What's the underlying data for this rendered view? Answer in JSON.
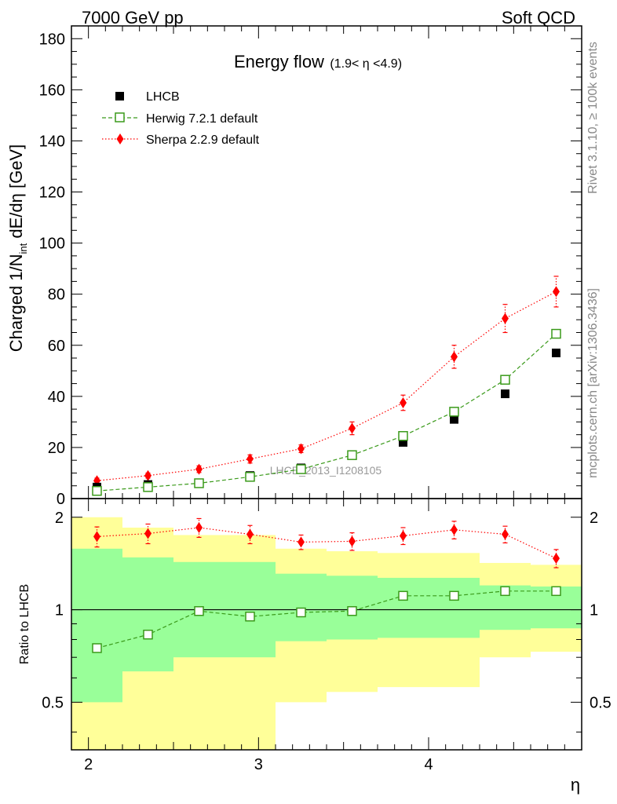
{
  "header": {
    "left": "7000 GeV pp",
    "right": "Soft QCD"
  },
  "side_text": {
    "rivet": "Rivet 3.1.10, ≥ 100k events",
    "mcplots": "mcplots.cern.ch [arXiv:1306.3436]"
  },
  "watermark": "LHCB_2013_I1208105",
  "title": {
    "main": "Energy flow",
    "range": "(1.9< η <4.9)"
  },
  "ylabel_main": {
    "prefix": "Charged 1/N",
    "sub": "int",
    "suffix": " dE/dη [GeV]"
  },
  "ylabel_ratio": "Ratio to LHCB",
  "xlabel": "η",
  "legend": {
    "data": "LHCB",
    "herwig": "Herwig 7.2.1 default",
    "sherpa": "Sherpa 2.2.9 default"
  },
  "colors": {
    "herwig": "#3a9a1a",
    "sherpa": "#ff0000",
    "data": "#000000",
    "band_inner": "#99ff99",
    "band_outer": "#ffff99"
  },
  "chart_data": [
    {
      "type": "scatter",
      "panel": "main",
      "xlim": [
        1.9,
        4.9
      ],
      "ylim": [
        0,
        185
      ],
      "yticks": [
        0,
        20,
        40,
        60,
        80,
        100,
        120,
        140,
        160,
        180
      ],
      "x": [
        2.05,
        2.35,
        2.65,
        2.95,
        3.25,
        3.55,
        3.85,
        4.15,
        4.45,
        4.75
      ],
      "series": [
        {
          "name": "LHCB",
          "values": [
            4.5,
            5.5,
            6.0,
            9.0,
            12.0,
            17.0,
            22.0,
            31.0,
            41.0,
            57.0
          ]
        },
        {
          "name": "Herwig 7.2.1 default",
          "values": [
            3.0,
            4.5,
            6.0,
            8.5,
            11.5,
            17.0,
            24.5,
            34.0,
            46.5,
            64.5
          ],
          "errors": [
            0.2,
            0.2,
            0.2,
            0.3,
            0.3,
            0.4,
            0.5,
            0.7,
            0.9,
            1.2
          ]
        },
        {
          "name": "Sherpa 2.2.9 default",
          "values": [
            7.0,
            9.0,
            11.5,
            15.5,
            19.5,
            27.5,
            37.5,
            55.5,
            70.5,
            81.0
          ],
          "errors": [
            1.0,
            1.0,
            1.3,
            1.6,
            1.5,
            2.5,
            3.0,
            4.5,
            5.5,
            6.0
          ]
        }
      ]
    },
    {
      "type": "scatter",
      "panel": "ratio",
      "xlim": [
        1.9,
        4.9
      ],
      "ylim": [
        0.35,
        2.3
      ],
      "yticks": [
        0.5,
        1,
        2
      ],
      "xticks": [
        2,
        3,
        4
      ],
      "x": [
        2.05,
        2.35,
        2.65,
        2.95,
        3.25,
        3.55,
        3.85,
        4.15,
        4.45,
        4.75
      ],
      "bands": {
        "edges": [
          1.9,
          2.2,
          2.5,
          2.8,
          3.1,
          3.4,
          3.7,
          4.0,
          4.3,
          4.6,
          4.9
        ],
        "inner_lo": [
          0.5,
          0.63,
          0.7,
          0.7,
          0.79,
          0.8,
          0.81,
          0.81,
          0.86,
          0.87
        ],
        "inner_hi": [
          1.58,
          1.48,
          1.43,
          1.43,
          1.31,
          1.29,
          1.27,
          1.27,
          1.2,
          1.19
        ],
        "outer_lo": [
          0.35,
          0.35,
          0.35,
          0.35,
          0.5,
          0.54,
          0.56,
          0.56,
          0.7,
          0.73
        ],
        "outer_hi": [
          2.0,
          1.85,
          1.75,
          1.75,
          1.58,
          1.55,
          1.53,
          1.53,
          1.42,
          1.4
        ]
      },
      "series": [
        {
          "name": "Herwig 7.2.1 default",
          "values": [
            0.75,
            0.83,
            0.99,
            0.95,
            0.98,
            0.99,
            1.11,
            1.11,
            1.15,
            1.15
          ],
          "errors": [
            0.01,
            0.01,
            0.01,
            0.01,
            0.01,
            0.01,
            0.01,
            0.01,
            0.01,
            0.01
          ]
        },
        {
          "name": "Sherpa 2.2.9 default",
          "values": [
            1.73,
            1.77,
            1.85,
            1.76,
            1.66,
            1.67,
            1.74,
            1.82,
            1.76,
            1.47
          ],
          "errors": [
            0.13,
            0.13,
            0.13,
            0.12,
            0.09,
            0.11,
            0.11,
            0.12,
            0.11,
            0.1
          ]
        }
      ]
    }
  ]
}
